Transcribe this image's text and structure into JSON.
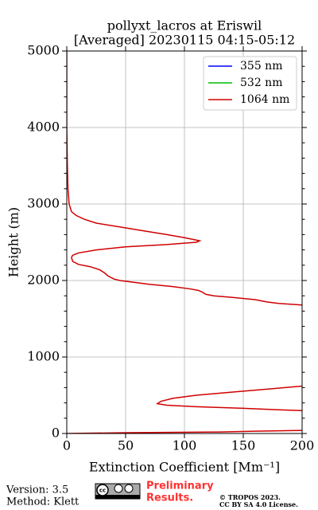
{
  "chart_data": {
    "type": "line",
    "title": [
      "pollyxt_lacros at Eriswil",
      "[Averaged] 20230115 04:15-05:12"
    ],
    "xlabel": "Extinction Coefficient [Mm⁻¹]",
    "ylabel": "Height (m)",
    "xlim": [
      0,
      200
    ],
    "xticks": [
      0,
      50,
      100,
      150,
      200
    ],
    "ylim": [
      0,
      5000
    ],
    "yticks": [
      0,
      1000,
      2000,
      3000,
      4000,
      5000
    ],
    "yminorticks": [
      200,
      400,
      600,
      800,
      1200,
      1400,
      1600,
      1800,
      2200,
      2400,
      2600,
      2800,
      3200,
      3400,
      3600,
      3800,
      4200,
      4400,
      4600,
      4800
    ],
    "grid": true,
    "legend": "upper right",
    "y": [
      5000,
      4000,
      3500,
      3200,
      3000,
      2900,
      2850,
      2800,
      2750,
      2700,
      2650,
      2600,
      2560,
      2520,
      2500,
      2470,
      2440,
      2400,
      2360,
      2330,
      2300,
      2250,
      2210,
      2180,
      2140,
      2100,
      2060,
      2020,
      2000,
      1980,
      1950,
      1920,
      1890,
      1870,
      1850,
      1820,
      1800,
      1780,
      1750,
      1720,
      1700,
      1680,
      1000,
      620,
      580,
      540,
      500,
      460,
      420,
      390,
      370,
      350,
      330,
      310,
      300,
      200,
      40,
      30,
      20,
      10,
      0
    ],
    "series": [
      {
        "name": "355 nm",
        "color": "#0000ff",
        "values": [
          null,
          null,
          null,
          null,
          null,
          null,
          null,
          null,
          null,
          null,
          null,
          null,
          null,
          null,
          null,
          null,
          null,
          null,
          null,
          null,
          null,
          null,
          null,
          null,
          null,
          null,
          null,
          null,
          null,
          null,
          null,
          null,
          null,
          null,
          null,
          null,
          null,
          null,
          null,
          null,
          null,
          null,
          null,
          null,
          null,
          null,
          null,
          null,
          null,
          null,
          null,
          null,
          null,
          null,
          null,
          null,
          null,
          null,
          null,
          null,
          null
        ]
      },
      {
        "name": "532 nm",
        "color": "#00bb00",
        "values": [
          null,
          null,
          null,
          null,
          null,
          null,
          null,
          null,
          null,
          null,
          null,
          null,
          null,
          null,
          null,
          null,
          null,
          null,
          null,
          null,
          null,
          null,
          null,
          null,
          null,
          null,
          null,
          null,
          null,
          null,
          null,
          null,
          null,
          null,
          null,
          null,
          null,
          null,
          null,
          null,
          null,
          null,
          null,
          null,
          null,
          null,
          null,
          null,
          null,
          null,
          null,
          null,
          null,
          null,
          null,
          null,
          null,
          null,
          null,
          null,
          null
        ]
      },
      {
        "name": "1064 nm",
        "color": "#d00000",
        "values": [
          0,
          0,
          0.5,
          1,
          2,
          4,
          8,
          15,
          25,
          45,
          65,
          85,
          100,
          113,
          110,
          85,
          50,
          25,
          10,
          5,
          4,
          5,
          10,
          20,
          28,
          32,
          35,
          40,
          45,
          55,
          70,
          90,
          105,
          112,
          115,
          118,
          125,
          140,
          160,
          170,
          180,
          200,
          null,
          200,
          170,
          140,
          110,
          90,
          80,
          77,
          85,
          110,
          150,
          180,
          200,
          null,
          200,
          160,
          130,
          50,
          0
        ]
      }
    ]
  },
  "footer": {
    "version": "Version: 3.5",
    "method": "Method: Klett",
    "notice": [
      "Preliminary",
      "Results."
    ],
    "copyright": [
      "© TROPOS 2023.",
      "CC BY SA 4.0 License."
    ]
  }
}
